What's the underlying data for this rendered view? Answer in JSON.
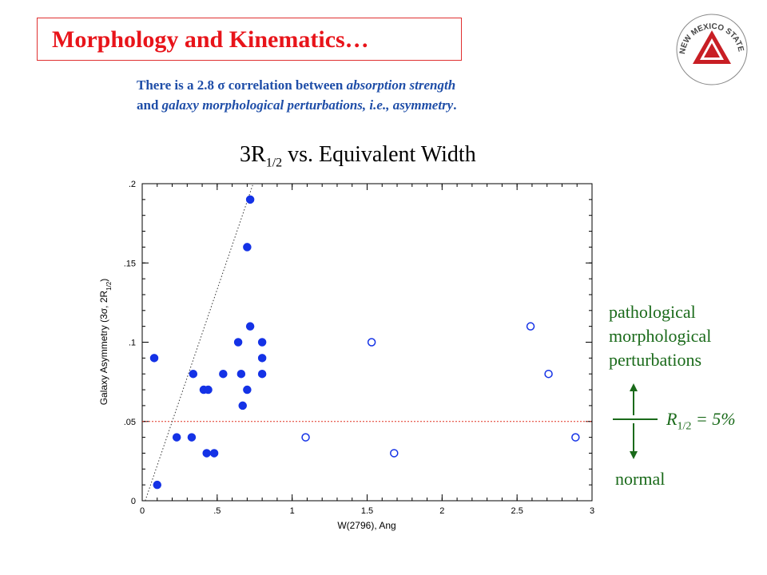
{
  "header": {
    "title": "Morphology and Kinematics…",
    "subtitle_line1": {
      "plain": "There is a 2.8 σ correlation between ",
      "italic": "absorption strength"
    },
    "subtitle_line2": {
      "plain": "and  ",
      "italic": "galaxy morphological perturbations, i.e., asymmetry",
      "end": "."
    },
    "logo_text": "NEW MEXICO STATE UNIVERSITY"
  },
  "chart_title": {
    "pre": "3R",
    "sub": "1/2",
    "post": " vs. Equivalent Width"
  },
  "annotations": {
    "upper_lines": [
      "pathological",
      "morphological",
      "perturbations"
    ],
    "lower": "normal",
    "threshold_pre": "R",
    "threshold_sub": "1/2",
    "threshold_post": " = 5%"
  },
  "colors": {
    "title_red": "#e8141a",
    "subtitle_blue": "#1f4ea8",
    "point_blue": "#1432e6",
    "annot_green": "#1a6a1a"
  },
  "chart_data": {
    "type": "scatter",
    "xlabel": "W(2796), Ang",
    "ylabel": "Galaxy Asymmetry (3σ, 2R",
    "ylabel_sub": "1/2",
    "ylabel_end": ")",
    "xlim": [
      0,
      3
    ],
    "ylim": [
      0,
      0.2
    ],
    "xticks": [
      0,
      0.5,
      1,
      1.5,
      2,
      2.5,
      3
    ],
    "xtick_labels": [
      "0",
      ".5",
      "1",
      "1.5",
      "2",
      "2.5",
      "3"
    ],
    "yticks": [
      0,
      0.05,
      0.1,
      0.15,
      0.2
    ],
    "ytick_labels": [
      "0",
      ".05",
      ".1",
      ".15",
      ".2"
    ],
    "threshold_y": 0.05,
    "fit_line": [
      [
        0.02,
        0.0
      ],
      [
        0.74,
        0.2
      ]
    ],
    "series": [
      {
        "marker": "filled",
        "points": [
          [
            0.08,
            0.09
          ],
          [
            0.1,
            0.01
          ],
          [
            0.23,
            0.04
          ],
          [
            0.33,
            0.04
          ],
          [
            0.34,
            0.08
          ],
          [
            0.41,
            0.07
          ],
          [
            0.43,
            0.03
          ],
          [
            0.44,
            0.07
          ],
          [
            0.48,
            0.03
          ],
          [
            0.54,
            0.08
          ],
          [
            0.64,
            0.1
          ],
          [
            0.66,
            0.08
          ],
          [
            0.67,
            0.06
          ],
          [
            0.7,
            0.07
          ],
          [
            0.7,
            0.16
          ],
          [
            0.72,
            0.11
          ],
          [
            0.72,
            0.19
          ],
          [
            0.8,
            0.1
          ],
          [
            0.8,
            0.09
          ],
          [
            0.8,
            0.08
          ]
        ]
      },
      {
        "marker": "open",
        "points": [
          [
            1.09,
            0.04
          ],
          [
            1.53,
            0.1
          ],
          [
            1.68,
            0.03
          ],
          [
            2.59,
            0.11
          ],
          [
            2.71,
            0.08
          ],
          [
            2.89,
            0.04
          ]
        ]
      }
    ]
  }
}
